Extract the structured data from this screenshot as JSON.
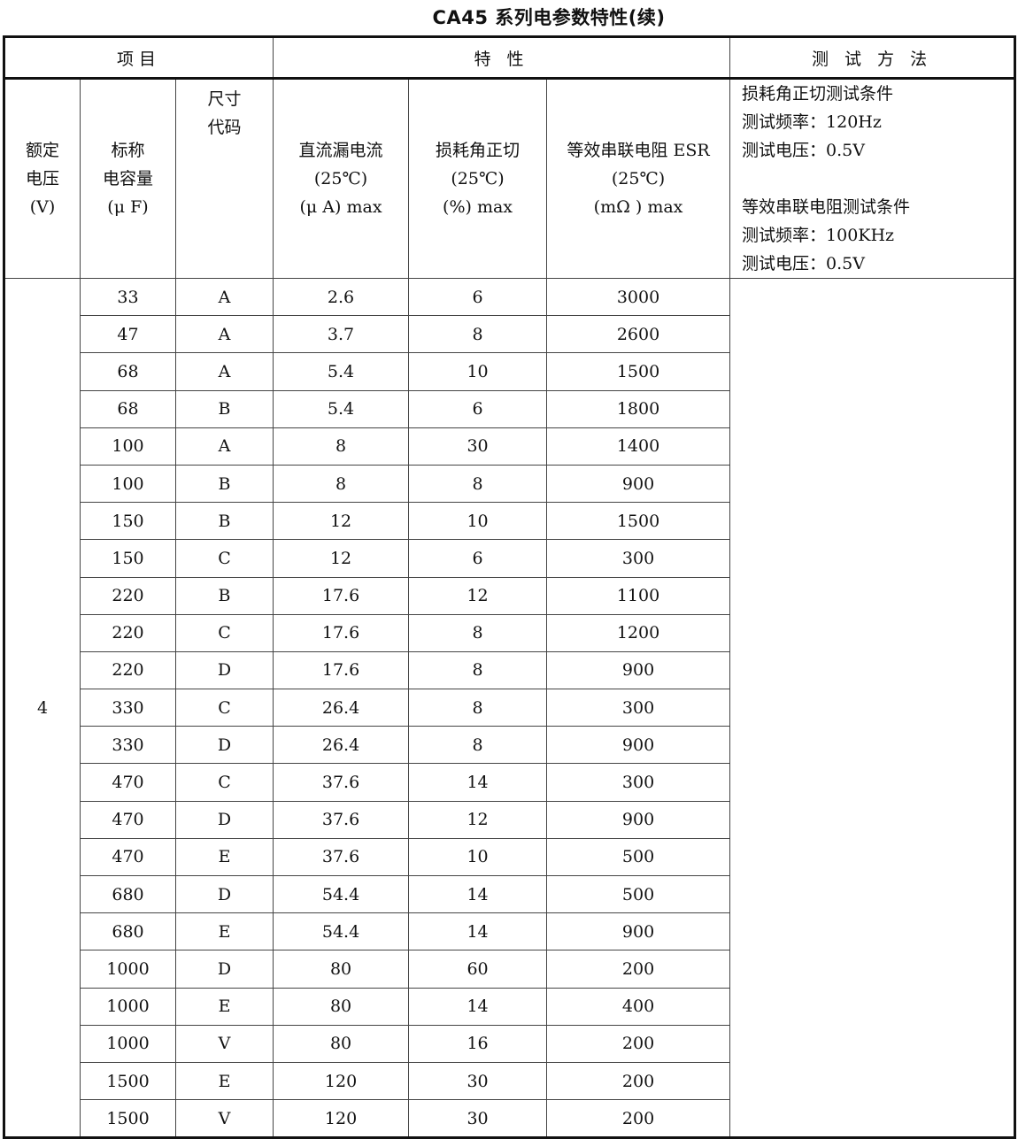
{
  "title": "CA45 系列电参数特性(续)",
  "header": {
    "group_item": "项目",
    "group_characteristics": "特 性",
    "group_test_method": "测 试 方 法",
    "col_voltage": [
      "额定",
      "电压",
      "(V)"
    ],
    "col_capacitance": [
      "标称",
      "电容量",
      "(μ F)"
    ],
    "col_size": [
      "尺寸",
      "代码"
    ],
    "col_leakage": [
      "直流漏电流",
      "(25℃)",
      "(μ A) max"
    ],
    "col_df": [
      "损耗角正切",
      "(25℃)",
      "(%) max"
    ],
    "col_esr": [
      "等效串联电阻 ESR",
      "(25℃)",
      "(mΩ ) max"
    ]
  },
  "rated_voltage": "4",
  "rows": [
    [
      "33",
      "A",
      "2.6",
      "6",
      "3000"
    ],
    [
      "47",
      "A",
      "3.7",
      "8",
      "2600"
    ],
    [
      "68",
      "A",
      "5.4",
      "10",
      "1500"
    ],
    [
      "68",
      "B",
      "5.4",
      "6",
      "1800"
    ],
    [
      "100",
      "A",
      "8",
      "30",
      "1400"
    ],
    [
      "100",
      "B",
      "8",
      "8",
      "900"
    ],
    [
      "150",
      "B",
      "12",
      "10",
      "1500"
    ],
    [
      "150",
      "C",
      "12",
      "6",
      "300"
    ],
    [
      "220",
      "B",
      "17.6",
      "12",
      "1100"
    ],
    [
      "220",
      "C",
      "17.6",
      "8",
      "1200"
    ],
    [
      "220",
      "D",
      "17.6",
      "8",
      "900"
    ],
    [
      "330",
      "C",
      "26.4",
      "8",
      "300"
    ],
    [
      "330",
      "D",
      "26.4",
      "8",
      "900"
    ],
    [
      "470",
      "C",
      "37.6",
      "14",
      "300"
    ],
    [
      "470",
      "D",
      "37.6",
      "12",
      "900"
    ],
    [
      "470",
      "E",
      "37.6",
      "10",
      "500"
    ],
    [
      "680",
      "D",
      "54.4",
      "14",
      "500"
    ],
    [
      "680",
      "E",
      "54.4",
      "14",
      "900"
    ],
    [
      "1000",
      "D",
      "80",
      "60",
      "200"
    ],
    [
      "1000",
      "E",
      "80",
      "14",
      "400"
    ],
    [
      "1000",
      "V",
      "80",
      "16",
      "200"
    ],
    [
      "1500",
      "E",
      "120",
      "30",
      "200"
    ],
    [
      "1500",
      "V",
      "120",
      "30",
      "200"
    ]
  ],
  "test_conditions": {
    "df_title": "损耗角正切测试条件",
    "df_freq": "测试频率：120Hz",
    "df_volt": "测试电压：0.5V",
    "esr_title": "等效串联电阻测试条件",
    "esr_freq": "测试频率：100KHz",
    "esr_volt": "测试电压：0.5V"
  }
}
